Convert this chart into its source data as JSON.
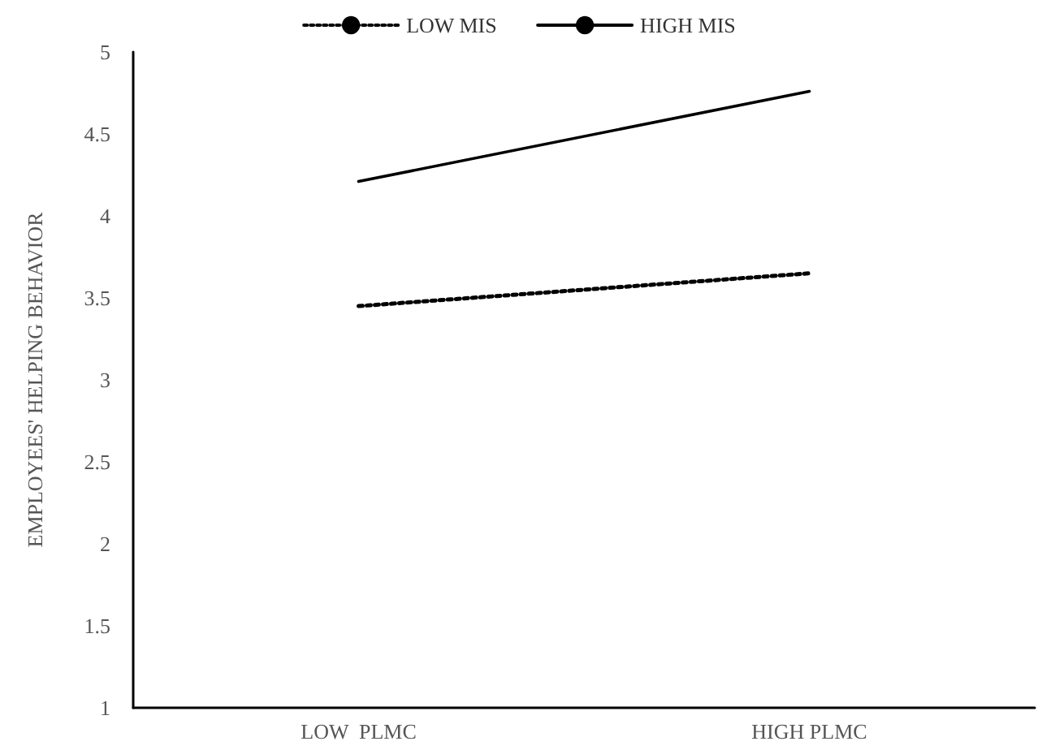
{
  "chart_data": {
    "type": "line",
    "ylabel": "EMPLOYEES' HELPING BEHAVIOR",
    "categories": [
      "LOW  PLMC",
      "HIGH PLMC"
    ],
    "series": [
      {
        "name": "LOW MIS",
        "color": "#000000",
        "line_style": "dotted",
        "values": [
          3.45,
          3.65
        ]
      },
      {
        "name": "HIGH MIS",
        "color": "#000000",
        "line_style": "solid",
        "values": [
          4.21,
          4.76
        ]
      }
    ],
    "ylim": [
      1,
      5
    ],
    "yticks": [
      1,
      1.5,
      2,
      2.5,
      3,
      3.5,
      4,
      4.5,
      5
    ],
    "grid": false,
    "legend": "top",
    "marker": "none"
  }
}
